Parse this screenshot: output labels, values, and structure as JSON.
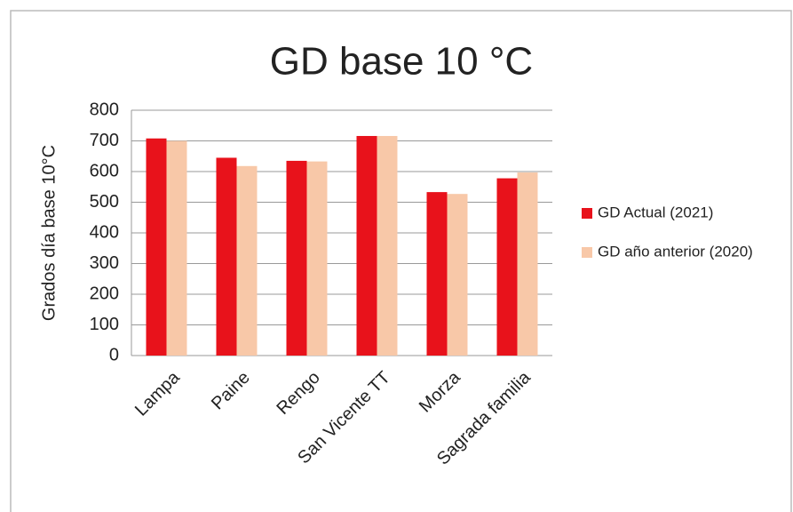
{
  "chart_data": {
    "type": "bar",
    "title": "GD base 10 °C",
    "y_label": "Grados día base 10°C",
    "categories": [
      "Lampa",
      "Paine",
      "Rengo",
      "San Vicente TT",
      "Morza",
      "Sagrada familia"
    ],
    "series": [
      {
        "name": "GD Actual (2021)",
        "color": "#e8121b",
        "values": [
          708,
          645,
          635,
          716,
          533,
          578
        ]
      },
      {
        "name": "GD año anterior (2020)",
        "color": "#f8c8a8",
        "values": [
          700,
          618,
          633,
          716,
          527,
          597
        ]
      }
    ],
    "ylim": [
      0,
      800
    ],
    "yticks": [
      0,
      100,
      200,
      300,
      400,
      500,
      600,
      700,
      800
    ],
    "grid": true,
    "legend": "right"
  }
}
